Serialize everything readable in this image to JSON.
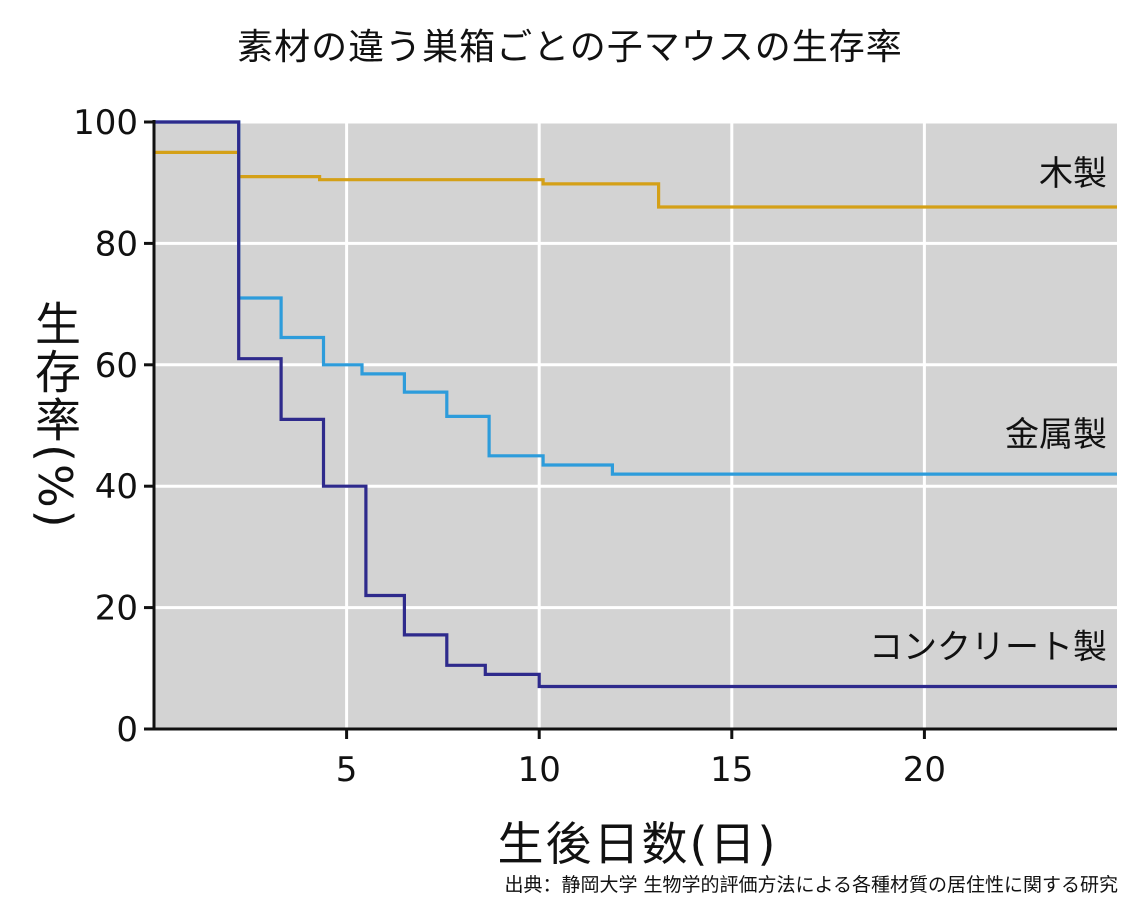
{
  "chart_data": {
    "type": "line",
    "step": true,
    "title": "素材の違う巣箱ごとの子マウスの生存率",
    "xlabel": "生後日数(日)",
    "ylabel": "生存率(%)",
    "xlim": [
      0,
      25
    ],
    "ylim": [
      0,
      100
    ],
    "xticks": [
      5,
      10,
      15,
      20
    ],
    "yticks": [
      0,
      20,
      40,
      60,
      80,
      100
    ],
    "grid": true,
    "source": "出典：静岡大学 生物学的評価方法による各種材質の居住性に関する研究",
    "series": [
      {
        "name": "木製",
        "color": "#d4a017",
        "x": [
          0,
          2.2,
          2.2,
          4.3,
          4.3,
          10.1,
          10.1,
          13.1,
          13.1,
          25
        ],
        "y": [
          95,
          95,
          91,
          91,
          90.5,
          90.5,
          89.8,
          89.8,
          86,
          86
        ]
      },
      {
        "name": "金属製",
        "color": "#2d9cdb",
        "x": [
          0,
          2.2,
          2.2,
          3.3,
          3.3,
          4.4,
          4.4,
          5.4,
          5.4,
          6.5,
          6.5,
          7.6,
          7.6,
          8.7,
          8.7,
          10.1,
          10.1,
          11.9,
          11.9,
          25
        ],
        "y": [
          100,
          100,
          71,
          71,
          64.5,
          64.5,
          60,
          60,
          58.5,
          58.5,
          55.5,
          55.5,
          51.5,
          51.5,
          45,
          45,
          43.5,
          43.5,
          42,
          42
        ]
      },
      {
        "name": "コンクリート製",
        "color": "#2e2a8c",
        "x": [
          0,
          2.2,
          2.2,
          3.3,
          3.3,
          4.4,
          4.4,
          5.5,
          5.5,
          6.5,
          6.5,
          7.6,
          7.6,
          8.6,
          8.6,
          10,
          10,
          25
        ],
        "y": [
          100,
          100,
          61,
          61,
          51,
          51,
          40,
          40,
          22,
          22,
          15.5,
          15.5,
          10.5,
          10.5,
          9,
          9,
          7,
          7
        ]
      }
    ]
  }
}
